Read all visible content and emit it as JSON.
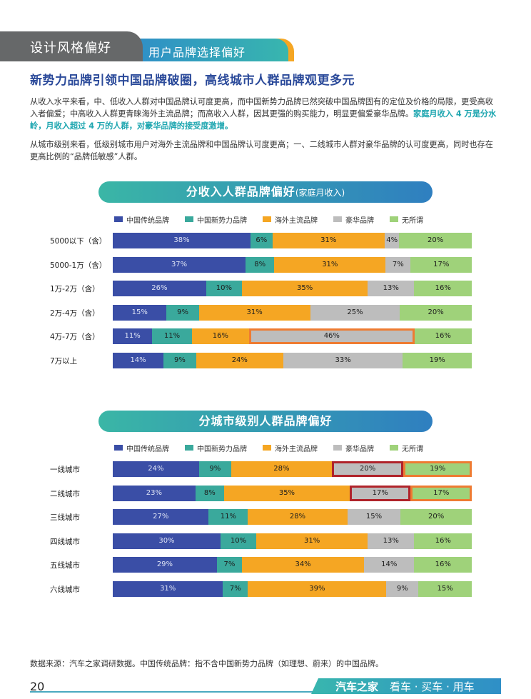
{
  "header": {
    "section": "设计风格偏好",
    "subsection": "用户品牌选择偏好"
  },
  "headline": "新势力品牌引领中国品牌破圈，高线城市人群品牌观更多元",
  "paragraph1": {
    "text": "从收入水平来看，中、低收入人群对中国品牌认可度更高，而中国新势力品牌已然突破中国品牌固有的定位及价格的局限，更受高收入者偏爱；中高收入人群更青睐海外主流品牌；而高收入人群，因其更强的购买能力，明显更偏爱豪华品牌。",
    "highlight": "家庭月收入 4 万是分水岭，月收入超过 4 万的人群，对豪华品牌的接受度激增。"
  },
  "paragraph2": "从城市级别来看，低级别城市用户对海外主流品牌和中国品牌认可度更高；一、二线城市人群对豪华品牌的认可度更高，同时也存在更高比例的“品牌低敏感”人群。",
  "legend": [
    "中国传统品牌",
    "中国新势力品牌",
    "海外主流品牌",
    "豪华品牌",
    "无所谓"
  ],
  "colors": [
    "#3a4ea6",
    "#3aa99c",
    "#f5a623",
    "#bdbdbd",
    "#9fd27a"
  ],
  "chart_data": [
    {
      "type": "bar",
      "stacked": true,
      "orientation": "horizontal",
      "title": "分收入人群品牌偏好",
      "subtitle": "(家庭月收入)",
      "categories": [
        "5000以下（含）",
        "5000-1万（含）",
        "1万-2万（含）",
        "2万-4万（含）",
        "4万-7万（含）",
        "7万以上"
      ],
      "series": [
        {
          "name": "中国传统品牌",
          "values": [
            38,
            37,
            26,
            15,
            11,
            14
          ]
        },
        {
          "name": "中国新势力品牌",
          "values": [
            6,
            8,
            10,
            9,
            11,
            9
          ]
        },
        {
          "name": "海外主流品牌",
          "values": [
            31,
            31,
            35,
            31,
            16,
            24
          ]
        },
        {
          "name": "豪华品牌",
          "values": [
            4,
            7,
            13,
            25,
            46,
            33
          ]
        },
        {
          "name": "无所谓",
          "values": [
            20,
            17,
            16,
            20,
            16,
            19
          ]
        }
      ],
      "highlights": [
        {
          "category": 4,
          "series": 3,
          "style": "orange"
        }
      ]
    },
    {
      "type": "bar",
      "stacked": true,
      "orientation": "horizontal",
      "title": "分城市级别人群品牌偏好",
      "subtitle": "",
      "categories": [
        "一线城市",
        "二线城市",
        "三线城市",
        "四线城市",
        "五线城市",
        "六线城市"
      ],
      "series": [
        {
          "name": "中国传统品牌",
          "values": [
            24,
            23,
            27,
            30,
            29,
            31
          ]
        },
        {
          "name": "中国新势力品牌",
          "values": [
            9,
            8,
            11,
            10,
            7,
            7
          ]
        },
        {
          "name": "海外主流品牌",
          "values": [
            28,
            35,
            28,
            31,
            34,
            39
          ]
        },
        {
          "name": "豪华品牌",
          "values": [
            20,
            17,
            15,
            13,
            14,
            9
          ]
        },
        {
          "name": "无所谓",
          "values": [
            19,
            17,
            20,
            16,
            16,
            15
          ]
        }
      ],
      "highlights": [
        {
          "category": 0,
          "series": 3,
          "style": "red"
        },
        {
          "category": 0,
          "series": 4,
          "style": "orange"
        },
        {
          "category": 1,
          "series": 3,
          "style": "red"
        },
        {
          "category": 1,
          "series": 4,
          "style": "orange"
        }
      ]
    }
  ],
  "footnote": "数据来源：汽车之家调研数据。中国传统品牌：指不含中国新势力品牌（如理想、蔚来）的中国品牌。",
  "page_number": "20",
  "brand": {
    "name": "汽车之家",
    "slogan": "看车 · 买车 · 用车"
  }
}
